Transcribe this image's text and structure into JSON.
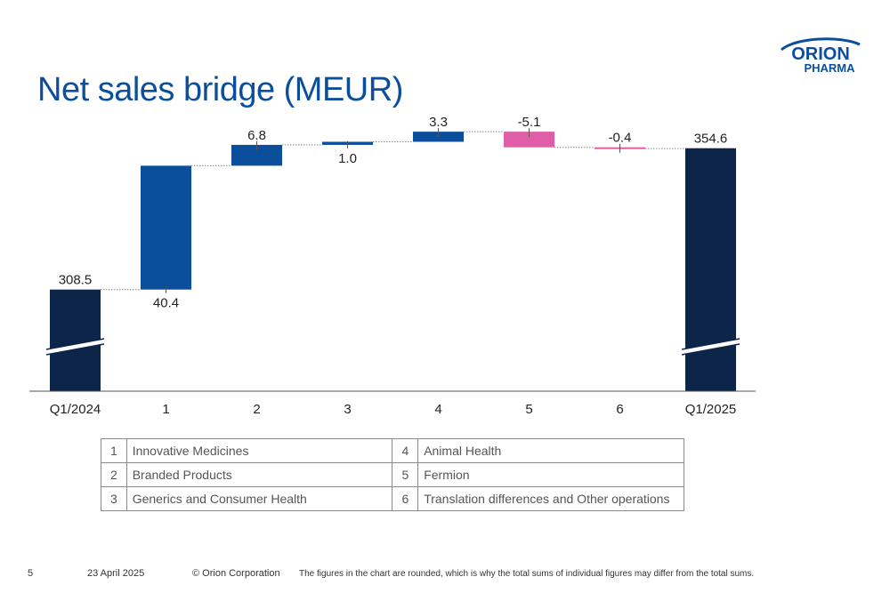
{
  "title": "Net sales bridge (MEUR)",
  "logo": {
    "line1": "ORION",
    "line2": "PHARMA"
  },
  "colors": {
    "total": "#0c2548",
    "positive": "#0b4f9c",
    "negative": "#e05ea8",
    "title": "#0b4f9c"
  },
  "chart_data": {
    "type": "bar",
    "subtype": "waterfall",
    "categories": [
      "Q1/2024",
      "1",
      "2",
      "3",
      "4",
      "5",
      "6",
      "Q1/2025"
    ],
    "values": [
      308.5,
      40.4,
      6.8,
      1.0,
      3.3,
      -5.1,
      -0.4,
      354.6
    ],
    "labels": [
      "308.5",
      "40.4",
      "6.8",
      "1.0",
      "3.3",
      "-5.1",
      "-0.4",
      "354.6"
    ],
    "kinds": [
      "total",
      "delta",
      "delta",
      "delta",
      "delta",
      "delta",
      "delta",
      "total"
    ],
    "axis_break": true
  },
  "legend": [
    {
      "num": "1",
      "label": "Innovative Medicines"
    },
    {
      "num": "2",
      "label": "Branded Products"
    },
    {
      "num": "3",
      "label": "Generics and Consumer Health"
    },
    {
      "num": "4",
      "label": "Animal Health"
    },
    {
      "num": "5",
      "label": "Fermion"
    },
    {
      "num": "6",
      "label": "Translation differences and Other operations"
    }
  ],
  "footer": {
    "page": "5",
    "date": "23 April 2025",
    "copyright": "© Orion Corporation",
    "note": "The figures in the chart are rounded, which is why the total sums of individual figures may differ from the total sums."
  }
}
